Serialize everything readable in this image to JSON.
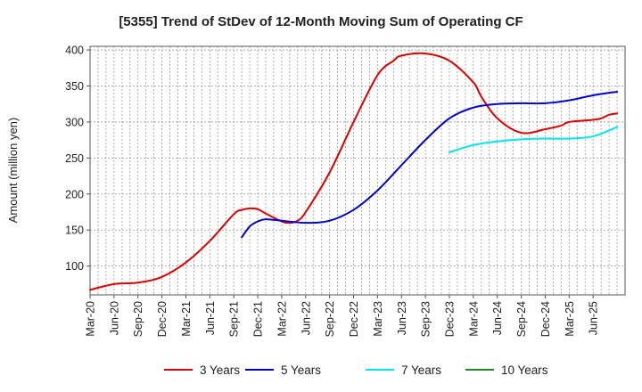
{
  "chart_data": {
    "type": "line",
    "title": "[5355]  Trend of StDev of 12-Month Moving Sum of Operating CF",
    "xlabel": "",
    "ylabel": "Amount (million yen)",
    "ylim": [
      60,
      405
    ],
    "yticks": [
      100,
      150,
      200,
      250,
      300,
      350,
      400
    ],
    "xlim": [
      0,
      67
    ],
    "x_tick_labels": [
      "Mar-20",
      "Jun-20",
      "Sep-20",
      "Dec-20",
      "Mar-21",
      "Jun-21",
      "Sep-21",
      "Dec-21",
      "Mar-22",
      "Jun-22",
      "Sep-22",
      "Dec-22",
      "Mar-23",
      "Jun-23",
      "Sep-23",
      "Dec-23",
      "Mar-24",
      "Jun-24",
      "Sep-24",
      "Dec-24",
      "Mar-25",
      "Jun-25"
    ],
    "grid": true,
    "legend_position": "bottom",
    "series": [
      {
        "name": "3 Years",
        "color": "#dd0000",
        "x": [
          0,
          3,
          6,
          9,
          12,
          15,
          18,
          19,
          20,
          21,
          22,
          24,
          25,
          26,
          27,
          30,
          33,
          36,
          38,
          39,
          42,
          45,
          48,
          49,
          51,
          54,
          57,
          59,
          60,
          63,
          64,
          65,
          66
        ],
        "values": [
          67,
          75,
          77,
          85,
          105,
          135,
          172,
          178,
          180,
          179,
          173,
          162,
          160,
          163,
          175,
          230,
          300,
          365,
          385,
          392,
          395,
          385,
          355,
          335,
          305,
          285,
          290,
          295,
          300,
          303,
          305,
          310,
          312
        ]
      },
      {
        "name": "5 Years",
        "color": "#0000cc",
        "x": [
          19,
          20,
          21,
          22,
          24,
          27,
          30,
          33,
          36,
          39,
          42,
          45,
          48,
          51,
          54,
          57,
          60,
          63,
          66
        ],
        "values": [
          140,
          155,
          162,
          165,
          163,
          160,
          163,
          178,
          205,
          240,
          275,
          305,
          320,
          325,
          326,
          326,
          330,
          337,
          342
        ]
      },
      {
        "name": "7 Years",
        "color": "#00e5ee",
        "x": [
          45,
          48,
          51,
          54,
          57,
          60,
          63,
          66
        ],
        "values": [
          258,
          268,
          273,
          276,
          277,
          277,
          280,
          293
        ]
      },
      {
        "name": "10 Years",
        "color": "#228b22",
        "x": [],
        "values": []
      }
    ]
  }
}
